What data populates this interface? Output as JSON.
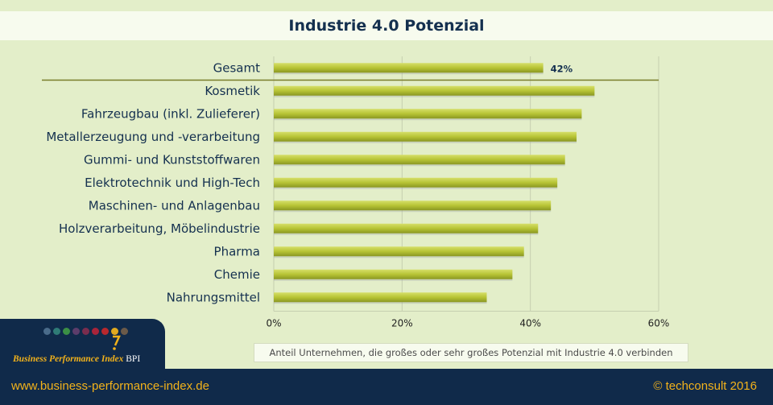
{
  "title": "Industrie 4.0 Potenzial",
  "note": "Anteil Unternehmen, die großes oder sehr großes Potenzial mit Industrie 4.0 verbinden",
  "footer": {
    "url": "www.business-performance-index.de",
    "copyright": "© techconsult 2016"
  },
  "logo": {
    "text": "Business Performance  Index",
    "suffix": "BPI",
    "dot_colors": [
      "#4a6b8a",
      "#2f7b76",
      "#3b8f45",
      "#5c3d6b",
      "#7a2d4e",
      "#a8243a",
      "#b8282d",
      "#e1aa1f",
      "#6b5a49"
    ]
  },
  "colors": {
    "bar": "#b7c435",
    "bar_dark": "#8a9722",
    "separator": "#7a7d2a",
    "title": "#14304f"
  },
  "chart_data": {
    "type": "bar",
    "orientation": "horizontal",
    "categories": [
      "Gesamt",
      "Kosmetik",
      "Fahrzeugbau (inkl. Zulieferer)",
      "Metallerzeugung und -verarbeitung",
      "Gummi- und Kunststoffwaren",
      "Elektrotechnik und High-Tech",
      "Maschinen- und Anlagenbau",
      "Holzverarbeitung, Möbelindustrie",
      "Pharma",
      "Chemie",
      "Nahrungsmittel"
    ],
    "values": [
      42,
      50,
      48,
      47.2,
      45.4,
      44.2,
      43.2,
      41.2,
      39,
      37.2,
      33.2
    ],
    "data_labels": [
      "42%",
      "",
      "",
      "",
      "",
      "",
      "",
      "",
      "",
      "",
      ""
    ],
    "xlim": [
      0,
      60
    ],
    "xticks": [
      0,
      20,
      40,
      60
    ],
    "xtick_labels": [
      "0%",
      "20%",
      "40%",
      "60%"
    ],
    "grid": true,
    "separator_after": "Gesamt",
    "legend": "none"
  }
}
